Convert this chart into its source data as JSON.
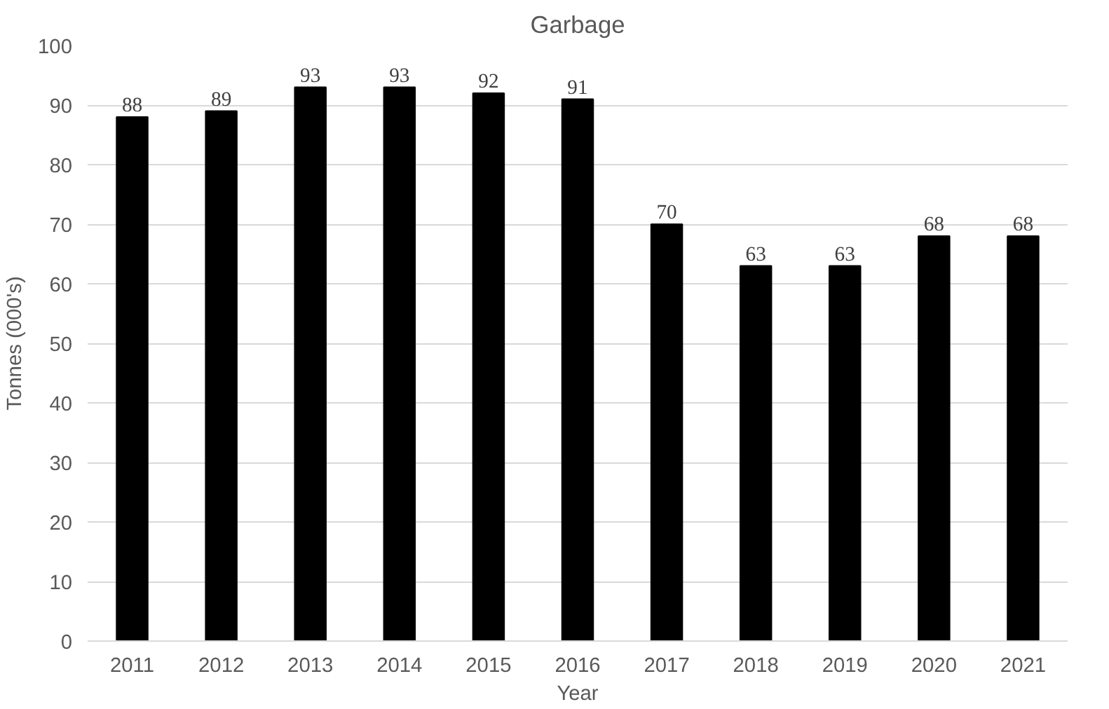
{
  "chart_data": {
    "type": "bar",
    "title": "Garbage",
    "xlabel": "Year",
    "ylabel": "Tonnes (000's)",
    "categories": [
      "2011",
      "2012",
      "2013",
      "2014",
      "2015",
      "2016",
      "2017",
      "2018",
      "2019",
      "2020",
      "2021"
    ],
    "values": [
      88,
      89,
      93,
      93,
      92,
      91,
      70,
      63,
      63,
      68,
      68
    ],
    "color": "#000000",
    "ylim": [
      0,
      100
    ],
    "yticks": [
      0,
      10,
      20,
      30,
      40,
      50,
      60,
      70,
      80,
      90,
      100
    ],
    "grid": "y",
    "data_labels": true
  }
}
